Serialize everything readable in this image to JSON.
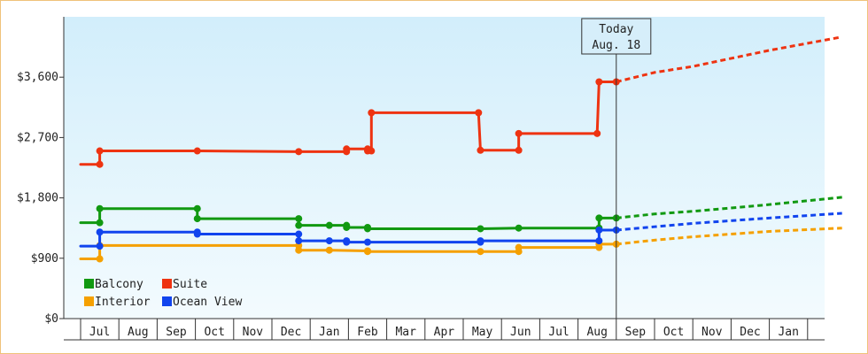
{
  "chart_data": {
    "type": "line",
    "title": "",
    "ylim": [
      0,
      4500
    ],
    "y_ticks": [
      0,
      900,
      1800,
      2700,
      3600
    ],
    "y_tick_labels": [
      "$0",
      "$900",
      "$1,800",
      "$2,700",
      "$3,600"
    ],
    "x_tick_labels": [
      "Jul",
      "Aug",
      "Sep",
      "Oct",
      "Nov",
      "Dec",
      "Jan",
      "Feb",
      "Mar",
      "Apr",
      "May",
      "Jun",
      "Jul",
      "Aug",
      "Sep",
      "Oct",
      "Nov",
      "Dec",
      "Jan"
    ],
    "today": {
      "line1": "Today",
      "line2": "Aug. 18",
      "x": 13.5
    },
    "grid": false,
    "legend_position": "bottom-left",
    "series": [
      {
        "name": "Balcony",
        "color": "#119911",
        "points": [
          [
            -0.5,
            1430
          ],
          [
            0,
            1430
          ],
          [
            0,
            1640
          ],
          [
            2.55,
            1640
          ],
          [
            2.55,
            1490
          ],
          [
            5.2,
            1490
          ],
          [
            5.2,
            1390
          ],
          [
            6,
            1390
          ],
          [
            6.45,
            1390
          ],
          [
            6.45,
            1360
          ],
          [
            7,
            1360
          ],
          [
            7,
            1340
          ],
          [
            9.95,
            1340
          ],
          [
            10.95,
            1350
          ],
          [
            13.05,
            1350
          ],
          [
            13.05,
            1500
          ],
          [
            13.5,
            1500
          ]
        ],
        "forecast": [
          [
            13.5,
            1500
          ],
          [
            14.5,
            1560
          ],
          [
            15.5,
            1600
          ],
          [
            17.5,
            1700
          ],
          [
            19.4,
            1810
          ]
        ]
      },
      {
        "name": "Suite",
        "color": "#ee3311",
        "points": [
          [
            -0.5,
            2300
          ],
          [
            0,
            2300
          ],
          [
            0,
            2500
          ],
          [
            2.55,
            2500
          ],
          [
            5.2,
            2490
          ],
          [
            6.45,
            2490
          ],
          [
            6.45,
            2530
          ],
          [
            7,
            2530
          ],
          [
            7,
            2500
          ],
          [
            7.1,
            2500
          ],
          [
            7.1,
            3070
          ],
          [
            9.9,
            3070
          ],
          [
            9.95,
            2510
          ],
          [
            10.95,
            2510
          ],
          [
            10.95,
            2760
          ],
          [
            13,
            2760
          ],
          [
            13.05,
            3530
          ],
          [
            13.5,
            3530
          ]
        ],
        "forecast": [
          [
            13.5,
            3530
          ],
          [
            14.5,
            3670
          ],
          [
            15.5,
            3760
          ],
          [
            17.5,
            4000
          ],
          [
            19.4,
            4200
          ]
        ]
      },
      {
        "name": "Interior",
        "color": "#f5a000",
        "points": [
          [
            -0.5,
            890
          ],
          [
            0,
            890
          ],
          [
            0,
            1090
          ],
          [
            5.2,
            1090
          ],
          [
            5.2,
            1020
          ],
          [
            6,
            1020
          ],
          [
            7,
            1010
          ],
          [
            7,
            1000
          ],
          [
            9.95,
            1000
          ],
          [
            10.95,
            1000
          ],
          [
            10.95,
            1060
          ],
          [
            13.05,
            1060
          ],
          [
            13.05,
            1110
          ],
          [
            13.5,
            1110
          ]
        ],
        "forecast": [
          [
            13.5,
            1110
          ],
          [
            14.5,
            1170
          ],
          [
            15.5,
            1220
          ],
          [
            17.5,
            1300
          ],
          [
            19.4,
            1350
          ]
        ]
      },
      {
        "name": "Ocean View",
        "color": "#1144ee",
        "points": [
          [
            -0.5,
            1080
          ],
          [
            0,
            1080
          ],
          [
            0,
            1290
          ],
          [
            2.55,
            1290
          ],
          [
            2.55,
            1260
          ],
          [
            5.2,
            1260
          ],
          [
            5.2,
            1160
          ],
          [
            6,
            1160
          ],
          [
            6.45,
            1160
          ],
          [
            6.45,
            1140
          ],
          [
            7,
            1140
          ],
          [
            9.95,
            1140
          ],
          [
            9.95,
            1160
          ],
          [
            13.05,
            1160
          ],
          [
            13.05,
            1320
          ],
          [
            13.5,
            1320
          ]
        ],
        "forecast": [
          [
            13.5,
            1320
          ],
          [
            14.5,
            1370
          ],
          [
            15.5,
            1420
          ],
          [
            17.5,
            1500
          ],
          [
            19.4,
            1570
          ]
        ]
      }
    ]
  }
}
